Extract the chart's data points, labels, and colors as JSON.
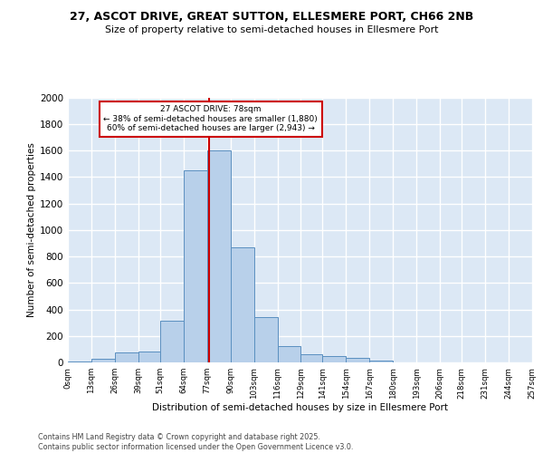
{
  "title_line1": "27, ASCOT DRIVE, GREAT SUTTON, ELLESMERE PORT, CH66 2NB",
  "title_line2": "Size of property relative to semi-detached houses in Ellesmere Port",
  "xlabel": "Distribution of semi-detached houses by size in Ellesmere Port",
  "ylabel": "Number of semi-detached properties",
  "footer_line1": "Contains HM Land Registry data © Crown copyright and database right 2025.",
  "footer_line2": "Contains public sector information licensed under the Open Government Licence v3.0.",
  "annotation_text": "27 ASCOT DRIVE: 78sqm\n← 38% of semi-detached houses are smaller (1,880)\n60% of semi-detached houses are larger (2,943) →",
  "bin_edges": [
    0,
    13,
    26,
    39,
    51,
    64,
    77,
    90,
    103,
    116,
    129,
    141,
    154,
    167,
    180,
    193,
    206,
    218,
    231,
    244,
    257
  ],
  "bin_labels": [
    "0sqm",
    "13sqm",
    "26sqm",
    "39sqm",
    "51sqm",
    "64sqm",
    "77sqm",
    "90sqm",
    "103sqm",
    "116sqm",
    "129sqm",
    "141sqm",
    "154sqm",
    "167sqm",
    "180sqm",
    "193sqm",
    "206sqm",
    "218sqm",
    "231sqm",
    "244sqm",
    "257sqm"
  ],
  "bar_values": [
    10,
    30,
    75,
    85,
    315,
    1450,
    1600,
    870,
    340,
    125,
    60,
    50,
    35,
    15,
    0,
    0,
    0,
    0,
    0,
    0
  ],
  "bar_color": "#b8d0ea",
  "bar_edge_color": "#5a8fc0",
  "vline_x": 78,
  "vline_color": "#cc0000",
  "box_color": "#cc0000",
  "ylim": [
    0,
    2000
  ],
  "yticks": [
    0,
    200,
    400,
    600,
    800,
    1000,
    1200,
    1400,
    1600,
    1800,
    2000
  ],
  "background_color": "#dce8f5",
  "grid_color": "#ffffff",
  "xlim": [
    0,
    257
  ]
}
